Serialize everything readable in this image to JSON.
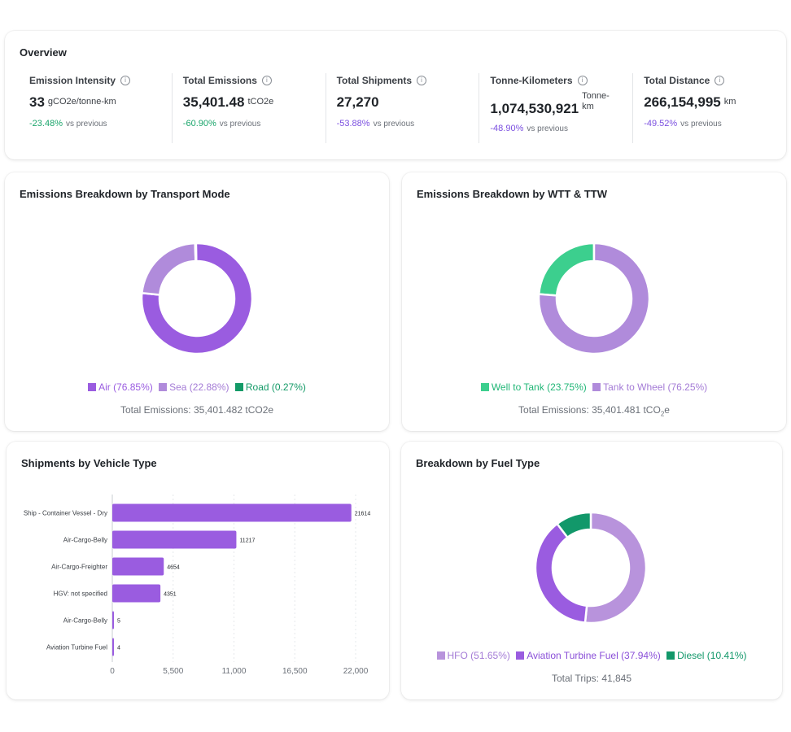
{
  "overview": {
    "title": "Overview",
    "metrics": [
      {
        "label": "Emission Intensity",
        "value": "33",
        "unit": "gCO2e/tonne-km",
        "change": "-23.48%",
        "vs": "vs previous"
      },
      {
        "label": "Total Emissions",
        "value": "35,401.48",
        "unit": "tCO2e",
        "change": "-60.90%",
        "vs": "vs previous"
      },
      {
        "label": "Total Shipments",
        "value": "27,270",
        "unit": "",
        "change": "-53.88%",
        "vs": "vs previous"
      },
      {
        "label": "Tonne-Kilometers",
        "value": "1,074,530,921",
        "unit": "Tonne-km",
        "change": "-48.90%",
        "vs": "vs previous"
      },
      {
        "label": "Total Distance",
        "value": "266,154,995",
        "unit": "km",
        "change": "-49.52%",
        "vs": "vs previous"
      }
    ],
    "info_icon": "i"
  },
  "colors": {
    "air": "#9a5ce0",
    "sea": "#b08bdb",
    "road": "#139a67",
    "wtt": "#3ccf8e",
    "ttw": "#b08bdb",
    "hfo": "#b893dc",
    "atf": "#9a5ce0",
    "diesel": "#12986a",
    "bar": "#9a5ce0",
    "green_text": "#1aa56b",
    "purple_text": "#7b4fe0"
  },
  "transport": {
    "title": "Emissions Breakdown by Transport Mode",
    "total": "Total Emissions: 35,401.482 tCO2e",
    "chart_data": {
      "type": "pie",
      "title": "Emissions Breakdown by Transport Mode",
      "labels": [
        "Air",
        "Sea",
        "Road"
      ],
      "values": [
        76.85,
        22.88,
        0.27
      ],
      "legend": [
        "Air (76.85%)",
        "Sea (22.88%)",
        "Road (0.27%)"
      ]
    }
  },
  "wtt": {
    "title": "Emissions Breakdown by WTT & TTW",
    "total": "Total Emissions: 35,401.481 tCO",
    "total_sub": "2",
    "total_suffix": "e",
    "chart_data": {
      "type": "pie",
      "title": "Emissions Breakdown by WTT & TTW",
      "labels": [
        "Well to Tank",
        "Tank to Wheel"
      ],
      "values": [
        23.75,
        76.25
      ],
      "legend": [
        "Well to Tank (23.75%)",
        "Tank to Wheel (76.25%)"
      ]
    }
  },
  "vehicles": {
    "title": "Shipments by Vehicle Type",
    "chart_data": {
      "type": "bar",
      "orientation": "horizontal",
      "title": "Shipments by Vehicle Type",
      "categories": [
        "Ship - Container Vessel - Dry",
        "Air-Cargo-Belly",
        "Air-Cargo-Freighter",
        "HGV: not specified",
        "Air-Cargo-Belly",
        "Aviation Turbine Fuel"
      ],
      "values": [
        21614,
        11217,
        4654,
        4351,
        5,
        4
      ],
      "xlim": [
        0,
        22000
      ],
      "xticks": [
        "0",
        "5,500",
        "11,000",
        "16,500",
        "22,000"
      ]
    }
  },
  "fuel": {
    "title": "Breakdown by Fuel Type",
    "total": "Total Trips: 41,845",
    "chart_data": {
      "type": "pie",
      "title": "Breakdown by Fuel Type",
      "labels": [
        "HFO",
        "Aviation Turbine Fuel",
        "Diesel"
      ],
      "values": [
        51.65,
        37.94,
        10.41
      ],
      "legend": [
        "HFO (51.65%)",
        "Aviation Turbine Fuel (37.94%)",
        "Diesel (10.41%)"
      ]
    }
  }
}
